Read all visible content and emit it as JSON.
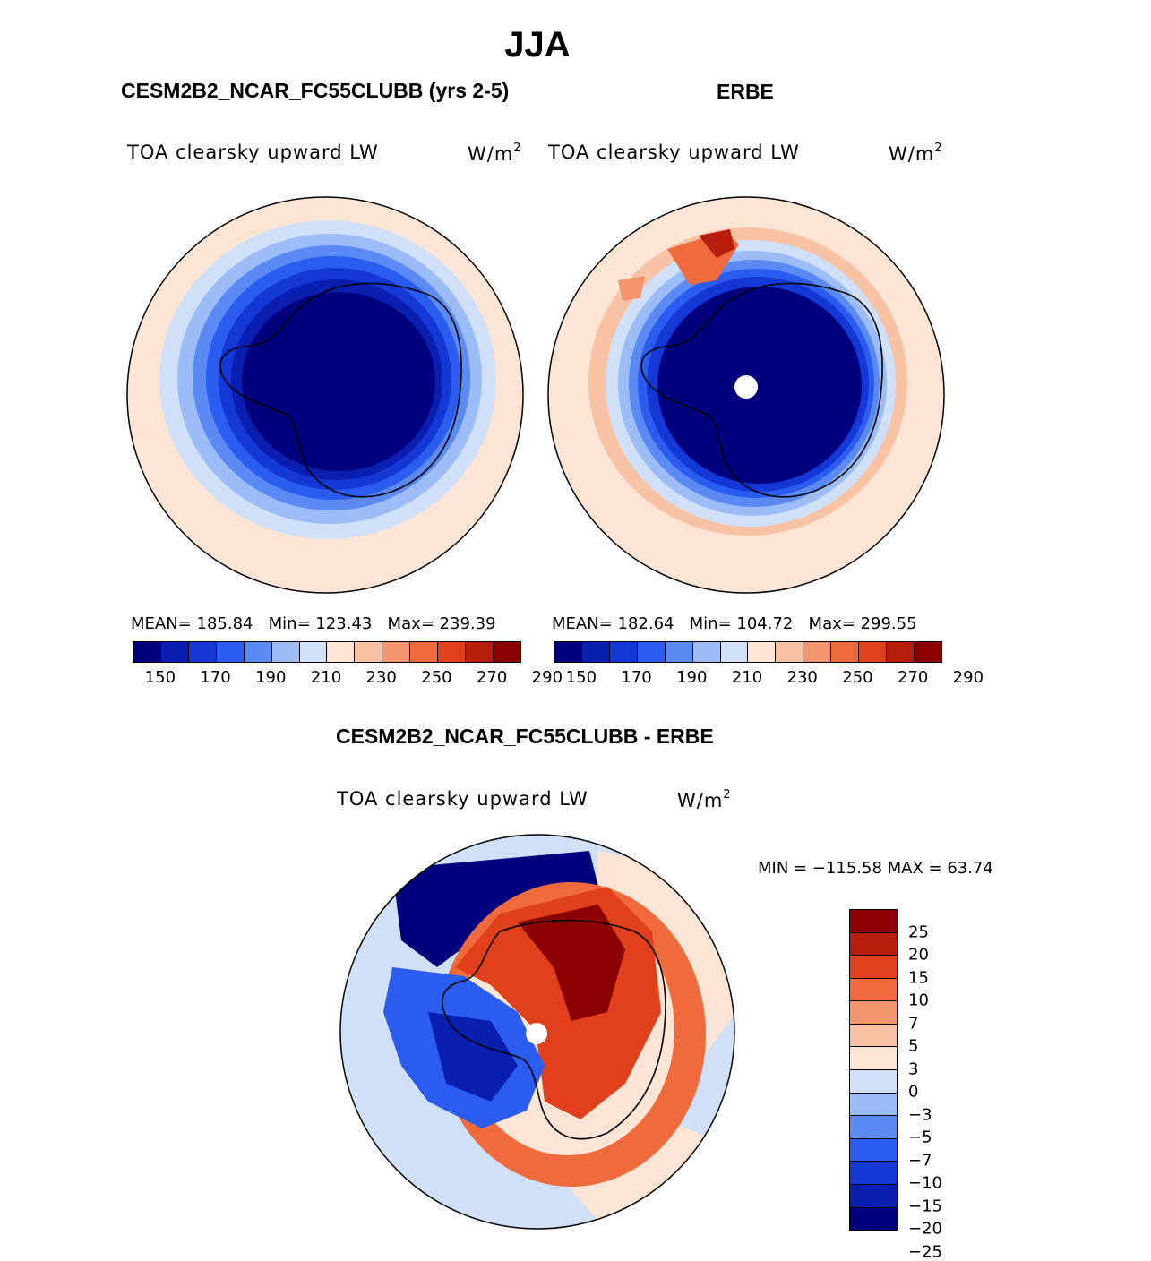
{
  "figure": {
    "season": "JJA",
    "variable": "TOA clearsky upward LW",
    "units": "W/m",
    "units_exp": "2"
  },
  "panels": {
    "model": {
      "title": "CESM2B2_NCAR_FC55CLUBB (yrs 2-5)",
      "stats": {
        "mean": "MEAN= 185.84",
        "min": "Min= 123.43",
        "max": "Max= 239.39"
      }
    },
    "obs": {
      "title": "ERBE",
      "stats": {
        "mean": "MEAN= 182.64",
        "min": "Min= 104.72",
        "max": "Max= 299.55"
      }
    },
    "diff": {
      "title": "CESM2B2_NCAR_FC55CLUBB - ERBE",
      "stats": "MIN = −115.58 MAX =   63.74"
    }
  },
  "colors": {
    "abs_levels": [
      "#00007f",
      "#0a1fb0",
      "#1438d6",
      "#2a5cf0",
      "#5b8af5",
      "#9bbcf7",
      "#cfe0f8",
      "#fde5d6",
      "#f8c2a5",
      "#f4956d",
      "#f06a3c",
      "#e0401c",
      "#b81e0e",
      "#8b0000"
    ],
    "diff_levels": [
      "#00007f",
      "#0a1fb0",
      "#1438d6",
      "#2a5cf0",
      "#5b8af5",
      "#9bbcf7",
      "#cfe0f8",
      "#fde5d6",
      "#f8c2a5",
      "#f4956d",
      "#f06a3c",
      "#e0401c",
      "#b81e0e",
      "#8b0000"
    ]
  },
  "chart_data": [
    {
      "type": "heatmap",
      "title": "CESM2B2_NCAR_FC55CLUBB (yrs 2-5)",
      "projection": "south polar stereographic",
      "stat_values": {
        "mean": 185.84,
        "min": 123.43,
        "max": 239.39
      },
      "colorbar_ticks": [
        "150",
        "170",
        "190",
        "210",
        "230",
        "250",
        "270",
        "290"
      ]
    },
    {
      "type": "heatmap",
      "title": "ERBE",
      "projection": "south polar stereographic",
      "stat_values": {
        "mean": 182.64,
        "min": 104.72,
        "max": 299.55
      },
      "colorbar_ticks": [
        "150",
        "170",
        "190",
        "210",
        "230",
        "250",
        "270",
        "290"
      ]
    },
    {
      "type": "heatmap",
      "title": "CESM2B2_NCAR_FC55CLUBB - ERBE",
      "projection": "south polar stereographic",
      "stat_values": {
        "min": -115.58,
        "max": 63.74
      },
      "colorbar_ticks": [
        "25",
        "20",
        "15",
        "10",
        "7",
        "5",
        "3",
        "0",
        "−3",
        "−5",
        "−7",
        "−10",
        "−15",
        "−20",
        "−25"
      ]
    }
  ]
}
